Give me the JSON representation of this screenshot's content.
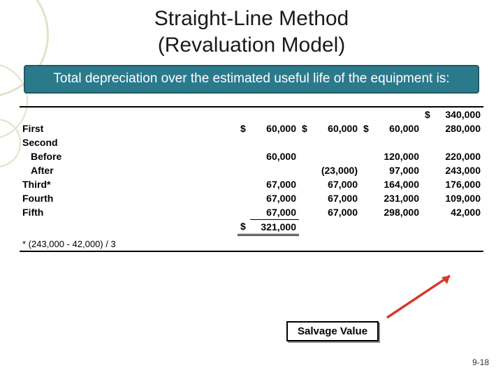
{
  "title_line1": "Straight-Line Method",
  "title_line2": "(Revaluation Model)",
  "callout_text": "Total depreciation over the estimated useful life of the equipment is:",
  "colors": {
    "callout_bg": "#2b7a8c",
    "callout_border": "#1f5a66",
    "arrow": "#d33a2b",
    "deco_ring": "#e5e0c8"
  },
  "table": {
    "initial_book_value": "340,000",
    "rows": [
      {
        "label": "First",
        "indent": false,
        "annual_dep": "60,000",
        "sl_dep": "60,000",
        "accum_dep": "60,000",
        "book": "280,000",
        "show_sym": true
      },
      {
        "label": "Second",
        "indent": false,
        "annual_dep": "",
        "sl_dep": "",
        "accum_dep": "",
        "book": "",
        "show_sym": false
      },
      {
        "label": "Before",
        "indent": true,
        "annual_dep": "60,000",
        "sl_dep": "",
        "accum_dep": "120,000",
        "book": "220,000",
        "show_sym": false
      },
      {
        "label": "After",
        "indent": true,
        "annual_dep": "",
        "sl_dep": "(23,000)",
        "accum_dep": "97,000",
        "book": "243,000",
        "show_sym": false
      },
      {
        "label": "Third*",
        "indent": false,
        "annual_dep": "67,000",
        "sl_dep": "67,000",
        "accum_dep": "164,000",
        "book": "176,000",
        "show_sym": false
      },
      {
        "label": "Fourth",
        "indent": false,
        "annual_dep": "67,000",
        "sl_dep": "67,000",
        "accum_dep": "231,000",
        "book": "109,000",
        "show_sym": false
      },
      {
        "label": "Fifth",
        "indent": false,
        "annual_dep": "67,000",
        "sl_dep": "67,000",
        "accum_dep": "298,000",
        "book": "42,000",
        "show_sym": false
      }
    ],
    "total_dep": "321,000",
    "footnote": "* (243,000 - 42,000) / 3"
  },
  "salvage_label": "Salvage Value",
  "slide_number": "9-18"
}
